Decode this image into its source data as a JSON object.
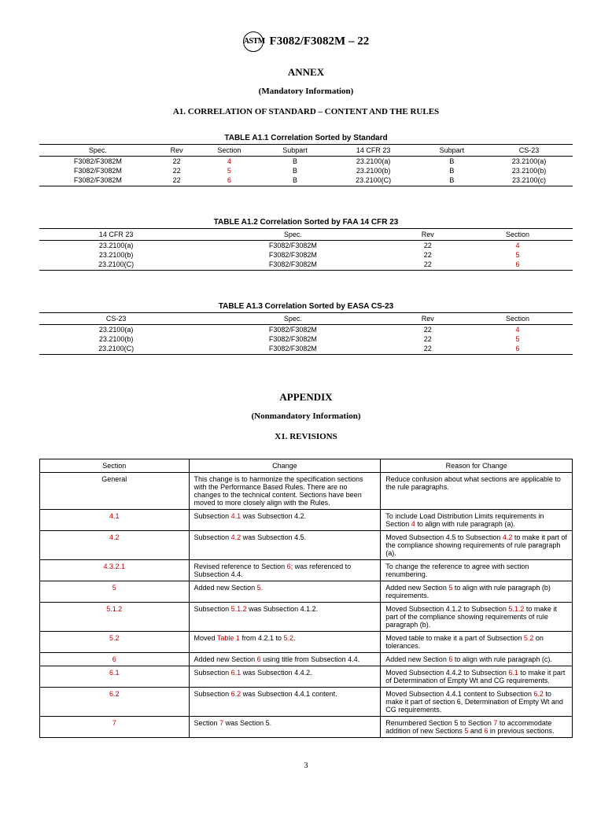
{
  "header": {
    "logo_text": "ASTM",
    "designation": "F3082/F3082M – 22"
  },
  "annex": {
    "title": "ANNEX",
    "subtitle": "(Mandatory Information)",
    "section_heading": "A1. CORRELATION OF STANDARD – CONTENT AND THE RULES"
  },
  "table_a11": {
    "caption": "TABLE A1.1 Correlation Sorted by Standard",
    "headers": [
      "Spec.",
      "Rev",
      "Section",
      "Subpart",
      "14 CFR 23",
      "Subpart",
      "CS-23"
    ],
    "rows": [
      [
        "F3082/F3082M",
        "22",
        "4",
        "B",
        "23.2100(a)",
        "B",
        "23.2100(a)"
      ],
      [
        "F3082/F3082M",
        "22",
        "5",
        "B",
        "23.2100(b)",
        "B",
        "23.2100(b)"
      ],
      [
        "F3082/F3082M",
        "22",
        "6",
        "B",
        "23.2100(C)",
        "B",
        "23.2100(c)"
      ]
    ],
    "red_col": 2
  },
  "table_a12": {
    "caption": "TABLE A1.2 Correlation Sorted by FAA 14 CFR 23",
    "headers": [
      "14 CFR 23",
      "Spec.",
      "Rev",
      "Section"
    ],
    "rows": [
      [
        "23.2100(a)",
        "F3082/F3082M",
        "22",
        "4"
      ],
      [
        "23.2100(b)",
        "F3082/F3082M",
        "22",
        "5"
      ],
      [
        "23.2100(C)",
        "F3082/F3082M",
        "22",
        "6"
      ]
    ],
    "red_col": 3
  },
  "table_a13": {
    "caption": "TABLE A1.3 Correlation Sorted by EASA CS-23",
    "headers": [
      "CS-23",
      "Spec.",
      "Rev",
      "Section"
    ],
    "rows": [
      [
        "23.2100(a)",
        "F3082/F3082M",
        "22",
        "4"
      ],
      [
        "23.2100(b)",
        "F3082/F3082M",
        "22",
        "5"
      ],
      [
        "23.2100(C)",
        "F3082/F3082M",
        "22",
        "6"
      ]
    ],
    "red_col": 3
  },
  "appendix": {
    "title": "APPENDIX",
    "subtitle": "(Nonmandatory Information)",
    "section_heading": "X1. REVISIONS"
  },
  "revisions_table": {
    "headers": [
      "Section",
      "Change",
      "Reason for Change"
    ],
    "rows": [
      {
        "section_parts": [
          {
            "t": "General",
            "red": false
          }
        ],
        "change_parts": [
          {
            "t": "This change is to harmonize the specification sections with the Performance Based Rules. There are no changes to the technical content. Sections have been moved to more closely align with the Rules.",
            "red": false
          }
        ],
        "reason_parts": [
          {
            "t": "Reduce confusion about what sections are applicable to the rule paragraphs.",
            "red": false
          }
        ]
      },
      {
        "section_parts": [
          {
            "t": "4.1",
            "red": true
          }
        ],
        "change_parts": [
          {
            "t": "Subsection ",
            "red": false
          },
          {
            "t": "4.1",
            "red": true
          },
          {
            "t": " was Subsection 4.2.",
            "red": false
          }
        ],
        "reason_parts": [
          {
            "t": "To include Load Distribution Limits requirements in Section ",
            "red": false
          },
          {
            "t": "4",
            "red": true
          },
          {
            "t": " to align with rule paragraph (a).",
            "red": false
          }
        ]
      },
      {
        "section_parts": [
          {
            "t": "4.2",
            "red": true
          }
        ],
        "change_parts": [
          {
            "t": "Subsection ",
            "red": false
          },
          {
            "t": "4.2",
            "red": true
          },
          {
            "t": " was Subsection 4.5.",
            "red": false
          }
        ],
        "reason_parts": [
          {
            "t": "Moved Subsection 4.5 to Subsection ",
            "red": false
          },
          {
            "t": "4.2",
            "red": true
          },
          {
            "t": " to make it part of the compliance showing requirements of rule paragraph (a).",
            "red": false
          }
        ]
      },
      {
        "section_parts": [
          {
            "t": "4.3.2.1",
            "red": true
          }
        ],
        "change_parts": [
          {
            "t": "Revised reference to Section ",
            "red": false
          },
          {
            "t": "6",
            "red": true
          },
          {
            "t": "; was referenced to Subsection 4.4.",
            "red": false
          }
        ],
        "reason_parts": [
          {
            "t": "To change the reference to agree with section renumbering.",
            "red": false
          }
        ]
      },
      {
        "section_parts": [
          {
            "t": "5",
            "red": true
          }
        ],
        "change_parts": [
          {
            "t": "Added new Section ",
            "red": false
          },
          {
            "t": "5",
            "red": true
          },
          {
            "t": ".",
            "red": false
          }
        ],
        "reason_parts": [
          {
            "t": "Added new Section ",
            "red": false
          },
          {
            "t": "5",
            "red": true
          },
          {
            "t": " to align with rule paragraph (b) requirements.",
            "red": false
          }
        ]
      },
      {
        "section_parts": [
          {
            "t": "5.1.2",
            "red": true
          }
        ],
        "change_parts": [
          {
            "t": "Subsection ",
            "red": false
          },
          {
            "t": "5.1.2",
            "red": true
          },
          {
            "t": " was Subsection 4.1.2.",
            "red": false
          }
        ],
        "reason_parts": [
          {
            "t": "Moved Subsection 4.1.2 to Subsection ",
            "red": false
          },
          {
            "t": "5.1.2",
            "red": true
          },
          {
            "t": " to make it part of the compliance showing requirements of rule paragraph (b).",
            "red": false
          }
        ]
      },
      {
        "section_parts": [
          {
            "t": "5.2",
            "red": true
          }
        ],
        "change_parts": [
          {
            "t": "Moved ",
            "red": false
          },
          {
            "t": "Table 1",
            "red": true
          },
          {
            "t": " from 4.2.1 to ",
            "red": false
          },
          {
            "t": "5.2",
            "red": true
          },
          {
            "t": ".",
            "red": false
          }
        ],
        "reason_parts": [
          {
            "t": "Moved table to make it a part of Subsection ",
            "red": false
          },
          {
            "t": "5.2",
            "red": true
          },
          {
            "t": " on tolerances.",
            "red": false
          }
        ]
      },
      {
        "section_parts": [
          {
            "t": "6",
            "red": true
          }
        ],
        "change_parts": [
          {
            "t": "Added new Section ",
            "red": false
          },
          {
            "t": "6",
            "red": true
          },
          {
            "t": " using title from Subsection 4.4.",
            "red": false
          }
        ],
        "reason_parts": [
          {
            "t": "Added new Section ",
            "red": false
          },
          {
            "t": "6",
            "red": true
          },
          {
            "t": " to align with rule paragraph (c).",
            "red": false
          }
        ]
      },
      {
        "section_parts": [
          {
            "t": "6.1",
            "red": true
          }
        ],
        "change_parts": [
          {
            "t": "Subsection ",
            "red": false
          },
          {
            "t": "6.1",
            "red": true
          },
          {
            "t": " was Subsection 4.4.2.",
            "red": false
          }
        ],
        "reason_parts": [
          {
            "t": "Moved Subsection 4.4.2 to Subsection ",
            "red": false
          },
          {
            "t": "6.1",
            "red": true
          },
          {
            "t": " to make it part of Determination of Empty Wt and CG requirements.",
            "red": false
          }
        ]
      },
      {
        "section_parts": [
          {
            "t": "6.2",
            "red": true
          }
        ],
        "change_parts": [
          {
            "t": "Subsection ",
            "red": false
          },
          {
            "t": "6.2",
            "red": true
          },
          {
            "t": " was Subsection 4.4.1 content.",
            "red": false
          }
        ],
        "reason_parts": [
          {
            "t": "Moved Subsection 4.4.1 content to Subsection ",
            "red": false
          },
          {
            "t": "6.2",
            "red": true
          },
          {
            "t": " to make it part of section 6, Determination of Empty Wt and CG requirements.",
            "red": false
          }
        ]
      },
      {
        "section_parts": [
          {
            "t": "7",
            "red": true
          }
        ],
        "change_parts": [
          {
            "t": "Section ",
            "red": false
          },
          {
            "t": "7",
            "red": true
          },
          {
            "t": " was Section 5.",
            "red": false
          }
        ],
        "reason_parts": [
          {
            "t": "Renumbered Section 5 to Section ",
            "red": false
          },
          {
            "t": "7",
            "red": true
          },
          {
            "t": " to accommodate addition of new Sections ",
            "red": false
          },
          {
            "t": "5",
            "red": true
          },
          {
            "t": " and ",
            "red": false
          },
          {
            "t": "6",
            "red": true
          },
          {
            "t": " in previous sections.",
            "red": false
          }
        ]
      }
    ]
  },
  "page_number": "3",
  "colors": {
    "red": "#c00000",
    "black": "#000000",
    "background": "#ffffff"
  }
}
